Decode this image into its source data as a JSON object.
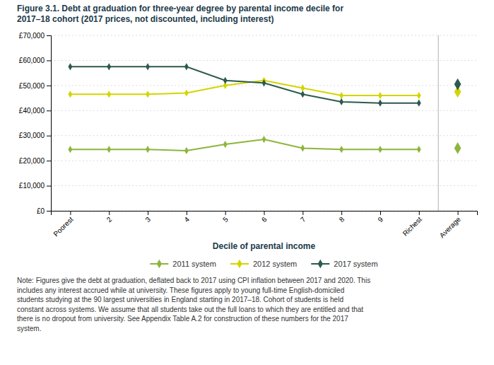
{
  "chart_data": {
    "type": "line",
    "title": "Figure 3.1. Debt at graduation for three-year degree by parental income decile for\n2017–18 cohort (2017 prices, not discounted, including interest)",
    "x_label": "Decile of parental income",
    "categories": [
      "Poorest",
      "2",
      "3",
      "4",
      "5",
      "6",
      "7",
      "8",
      "9",
      "Richest"
    ],
    "average_label": "Average",
    "series": [
      {
        "name": "2011 system",
        "color": "#8db53c",
        "values": [
          24500,
          24500,
          24500,
          24000,
          26500,
          28500,
          25000,
          24500,
          24500,
          24500
        ],
        "average": 25000
      },
      {
        "name": "2012 system",
        "color": "#d4d400",
        "values": [
          46500,
          46500,
          46500,
          47000,
          50000,
          52000,
          49000,
          46000,
          46000,
          46000
        ],
        "average": 47500
      },
      {
        "name": "2017 system",
        "color": "#2d5a4e",
        "values": [
          57500,
          57500,
          57500,
          57500,
          52000,
          51000,
          46500,
          43500,
          43000,
          43000
        ],
        "average": 50500
      }
    ],
    "ylim": [
      0,
      70000
    ],
    "yticks": [
      {
        "value": 0,
        "label": "£0"
      },
      {
        "value": 10000,
        "label": "£10,000"
      },
      {
        "value": 20000,
        "label": "£20,000"
      },
      {
        "value": 30000,
        "label": "£30,000"
      },
      {
        "value": 40000,
        "label": "£40,000"
      },
      {
        "value": 50000,
        "label": "£50,000"
      },
      {
        "value": 60000,
        "label": "£60,000"
      },
      {
        "value": 70000,
        "label": "£70,000"
      }
    ],
    "grid": true,
    "marker": "diamond",
    "legend": "bottom",
    "note": "Note: Figures give the debt at graduation, deflated back to 2017 using CPI inflation between 2017 and 2020. This\nincludes any interest accrued while at university. These figures apply to young full-time English-domiciled\nstudents studying at the 90 largest universities in England starting in 2017–18. Cohort of students is held\nconstant across systems. We assume that all students take out the full loans to which they are entitled and that\nthere is no dropout from university. See Appendix Table A.2 for construction of these numbers for the 2017\nsystem."
  }
}
